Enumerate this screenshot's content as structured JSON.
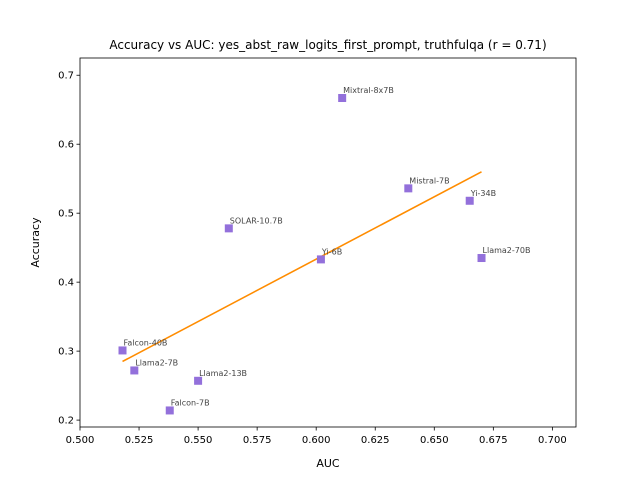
{
  "chart_data": {
    "type": "scatter",
    "title": "Accuracy vs AUC: yes_abst_raw_logits_first_prompt, truthfulqa (r = 0.71)",
    "xlabel": "AUC",
    "ylabel": "Accuracy",
    "xlim": [
      0.5,
      0.71
    ],
    "ylim": [
      0.19,
      0.725
    ],
    "xticks": [
      "0.500",
      "0.525",
      "0.550",
      "0.575",
      "0.600",
      "0.625",
      "0.650",
      "0.675",
      "0.700"
    ],
    "yticks": [
      "0.2",
      "0.3",
      "0.4",
      "0.5",
      "0.6",
      "0.7"
    ],
    "grid": false,
    "colors": {
      "points": "#9370DB",
      "fit_line": "#FF8C00"
    },
    "points": [
      {
        "label": "Mixtral-8x7B",
        "x": 0.611,
        "y": 0.667
      },
      {
        "label": "Mistral-7B",
        "x": 0.639,
        "y": 0.536
      },
      {
        "label": "Yi-34B",
        "x": 0.665,
        "y": 0.518
      },
      {
        "label": "SOLAR-10.7B",
        "x": 0.563,
        "y": 0.478
      },
      {
        "label": "Yi-6B",
        "x": 0.602,
        "y": 0.433
      },
      {
        "label": "Llama2-70B",
        "x": 0.67,
        "y": 0.435
      },
      {
        "label": "Falcon-40B",
        "x": 0.518,
        "y": 0.301
      },
      {
        "label": "Llama2-7B",
        "x": 0.523,
        "y": 0.272
      },
      {
        "label": "Llama2-13B",
        "x": 0.55,
        "y": 0.257
      },
      {
        "label": "Falcon-7B",
        "x": 0.538,
        "y": 0.214
      }
    ],
    "fit_line": {
      "x": [
        0.518,
        0.67
      ],
      "y": [
        0.285,
        0.56
      ]
    }
  }
}
